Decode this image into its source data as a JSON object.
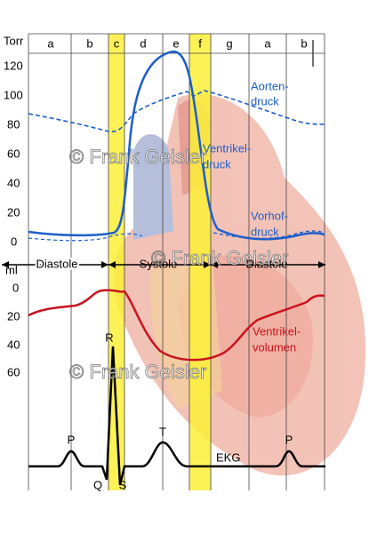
{
  "pressure_axis": {
    "unit": "Torr",
    "ticks": [
      "120",
      "100",
      "80",
      "60",
      "40",
      "20",
      "0"
    ]
  },
  "volume_axis": {
    "unit": "ml",
    "ticks": [
      "0",
      "20",
      "40",
      "60"
    ]
  },
  "phases": [
    "a",
    "b",
    "c",
    "d",
    "e",
    "f",
    "g",
    "a",
    "b"
  ],
  "periods": [
    "Diastole",
    "Systole",
    "Diastole"
  ],
  "curve_labels": {
    "aorta": [
      "Aorten-",
      "druck"
    ],
    "ventricle": [
      "Ventrikel-",
      "druck"
    ],
    "atrium": [
      "Vorhof-",
      "druck"
    ],
    "volume": [
      "Ventrikel-",
      "volumen"
    ],
    "ecg": "EKG"
  },
  "ecg_waves": [
    "P",
    "Q",
    "R",
    "S",
    "T",
    "P"
  ],
  "watermark": "© Frank Geisler"
}
